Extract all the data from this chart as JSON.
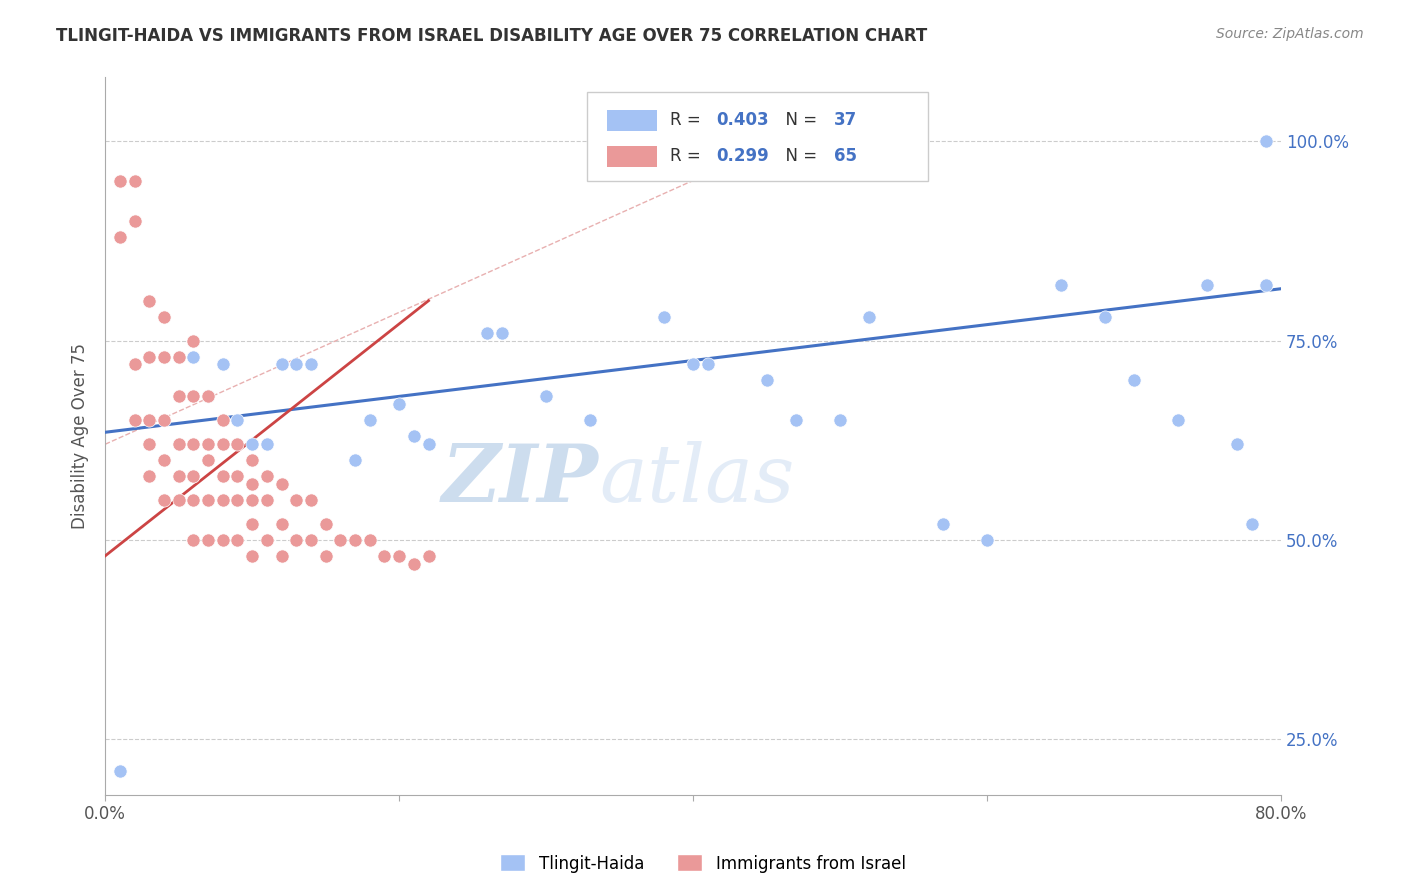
{
  "title": "TLINGIT-HAIDA VS IMMIGRANTS FROM ISRAEL DISABILITY AGE OVER 75 CORRELATION CHART",
  "source": "Source: ZipAtlas.com",
  "ylabel": "Disability Age Over 75",
  "xlim": [
    0.0,
    0.8
  ],
  "ylim": [
    0.18,
    1.08
  ],
  "ytick_labels_right": [
    "25.0%",
    "50.0%",
    "75.0%",
    "100.0%"
  ],
  "ytick_vals_right": [
    0.25,
    0.5,
    0.75,
    1.0
  ],
  "R_blue": "0.403",
  "N_blue": "37",
  "R_pink": "0.299",
  "N_pink": "65",
  "blue_color": "#a4c2f4",
  "pink_color": "#ea9999",
  "trend_blue": "#4472c4",
  "trend_pink": "#cc4444",
  "legend_label_blue": "Tlingit-Haida",
  "legend_label_pink": "Immigrants from Israel",
  "blue_scatter_x": [
    0.01,
    0.06,
    0.07,
    0.08,
    0.09,
    0.1,
    0.11,
    0.12,
    0.13,
    0.14,
    0.17,
    0.18,
    0.2,
    0.21,
    0.22,
    0.26,
    0.27,
    0.3,
    0.33,
    0.38,
    0.4,
    0.41,
    0.45,
    0.47,
    0.5,
    0.52,
    0.57,
    0.6,
    0.65,
    0.68,
    0.7,
    0.73,
    0.75,
    0.77,
    0.78,
    0.79,
    0.79
  ],
  "blue_scatter_y": [
    0.21,
    0.73,
    0.68,
    0.72,
    0.65,
    0.62,
    0.62,
    0.72,
    0.72,
    0.72,
    0.6,
    0.65,
    0.67,
    0.63,
    0.62,
    0.76,
    0.76,
    0.68,
    0.65,
    0.78,
    0.72,
    0.72,
    0.7,
    0.65,
    0.65,
    0.78,
    0.52,
    0.5,
    0.82,
    0.78,
    0.7,
    0.65,
    0.82,
    0.62,
    0.52,
    0.82,
    1.0
  ],
  "pink_scatter_x": [
    0.01,
    0.01,
    0.02,
    0.02,
    0.02,
    0.02,
    0.03,
    0.03,
    0.03,
    0.03,
    0.03,
    0.04,
    0.04,
    0.04,
    0.04,
    0.04,
    0.05,
    0.05,
    0.05,
    0.05,
    0.05,
    0.06,
    0.06,
    0.06,
    0.06,
    0.06,
    0.06,
    0.07,
    0.07,
    0.07,
    0.07,
    0.07,
    0.08,
    0.08,
    0.08,
    0.08,
    0.08,
    0.09,
    0.09,
    0.09,
    0.09,
    0.1,
    0.1,
    0.1,
    0.1,
    0.1,
    0.11,
    0.11,
    0.11,
    0.12,
    0.12,
    0.12,
    0.13,
    0.13,
    0.14,
    0.14,
    0.15,
    0.15,
    0.16,
    0.17,
    0.18,
    0.19,
    0.2,
    0.21,
    0.22
  ],
  "pink_scatter_y": [
    0.95,
    0.88,
    0.95,
    0.9,
    0.72,
    0.65,
    0.8,
    0.73,
    0.65,
    0.62,
    0.58,
    0.78,
    0.73,
    0.65,
    0.6,
    0.55,
    0.73,
    0.68,
    0.62,
    0.58,
    0.55,
    0.75,
    0.68,
    0.62,
    0.58,
    0.55,
    0.5,
    0.68,
    0.62,
    0.6,
    0.55,
    0.5,
    0.65,
    0.62,
    0.58,
    0.55,
    0.5,
    0.62,
    0.58,
    0.55,
    0.5,
    0.6,
    0.57,
    0.55,
    0.52,
    0.48,
    0.58,
    0.55,
    0.5,
    0.57,
    0.52,
    0.48,
    0.55,
    0.5,
    0.55,
    0.5,
    0.52,
    0.48,
    0.5,
    0.5,
    0.5,
    0.48,
    0.48,
    0.47,
    0.48
  ],
  "diag_line_x": [
    0.0,
    0.52
  ],
  "diag_line_y": [
    0.62,
    1.05
  ]
}
